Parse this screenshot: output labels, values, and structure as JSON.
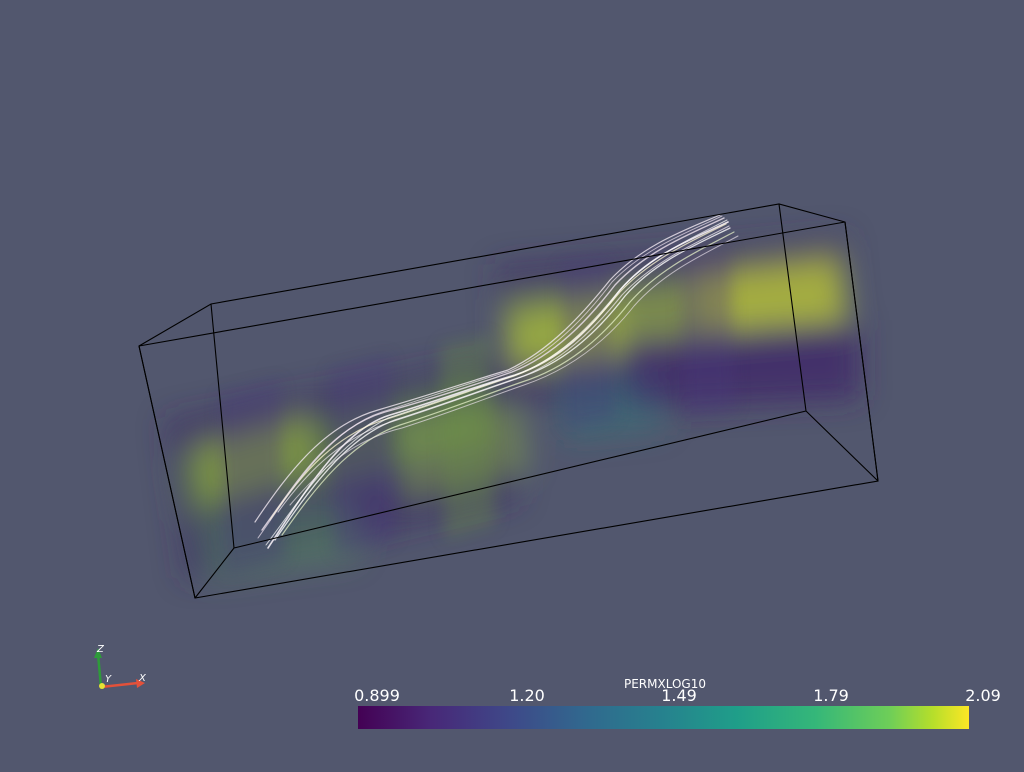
{
  "scalar_bar": {
    "title": "PERMXLOG10",
    "ticks": [
      "0.899",
      "1.20",
      "1.49",
      "1.79",
      "2.09"
    ],
    "range": [
      0.899,
      2.09
    ]
  },
  "orientation_axes": {
    "labels": {
      "x": "X",
      "y": "Y",
      "z": "Z"
    },
    "colors": {
      "x": "#e3513a",
      "y": "#e6e234",
      "z": "#2e9b3a"
    }
  },
  "colors": {
    "background": "#52576e",
    "outline": "#000000",
    "streamline": "#f0e6f0"
  }
}
